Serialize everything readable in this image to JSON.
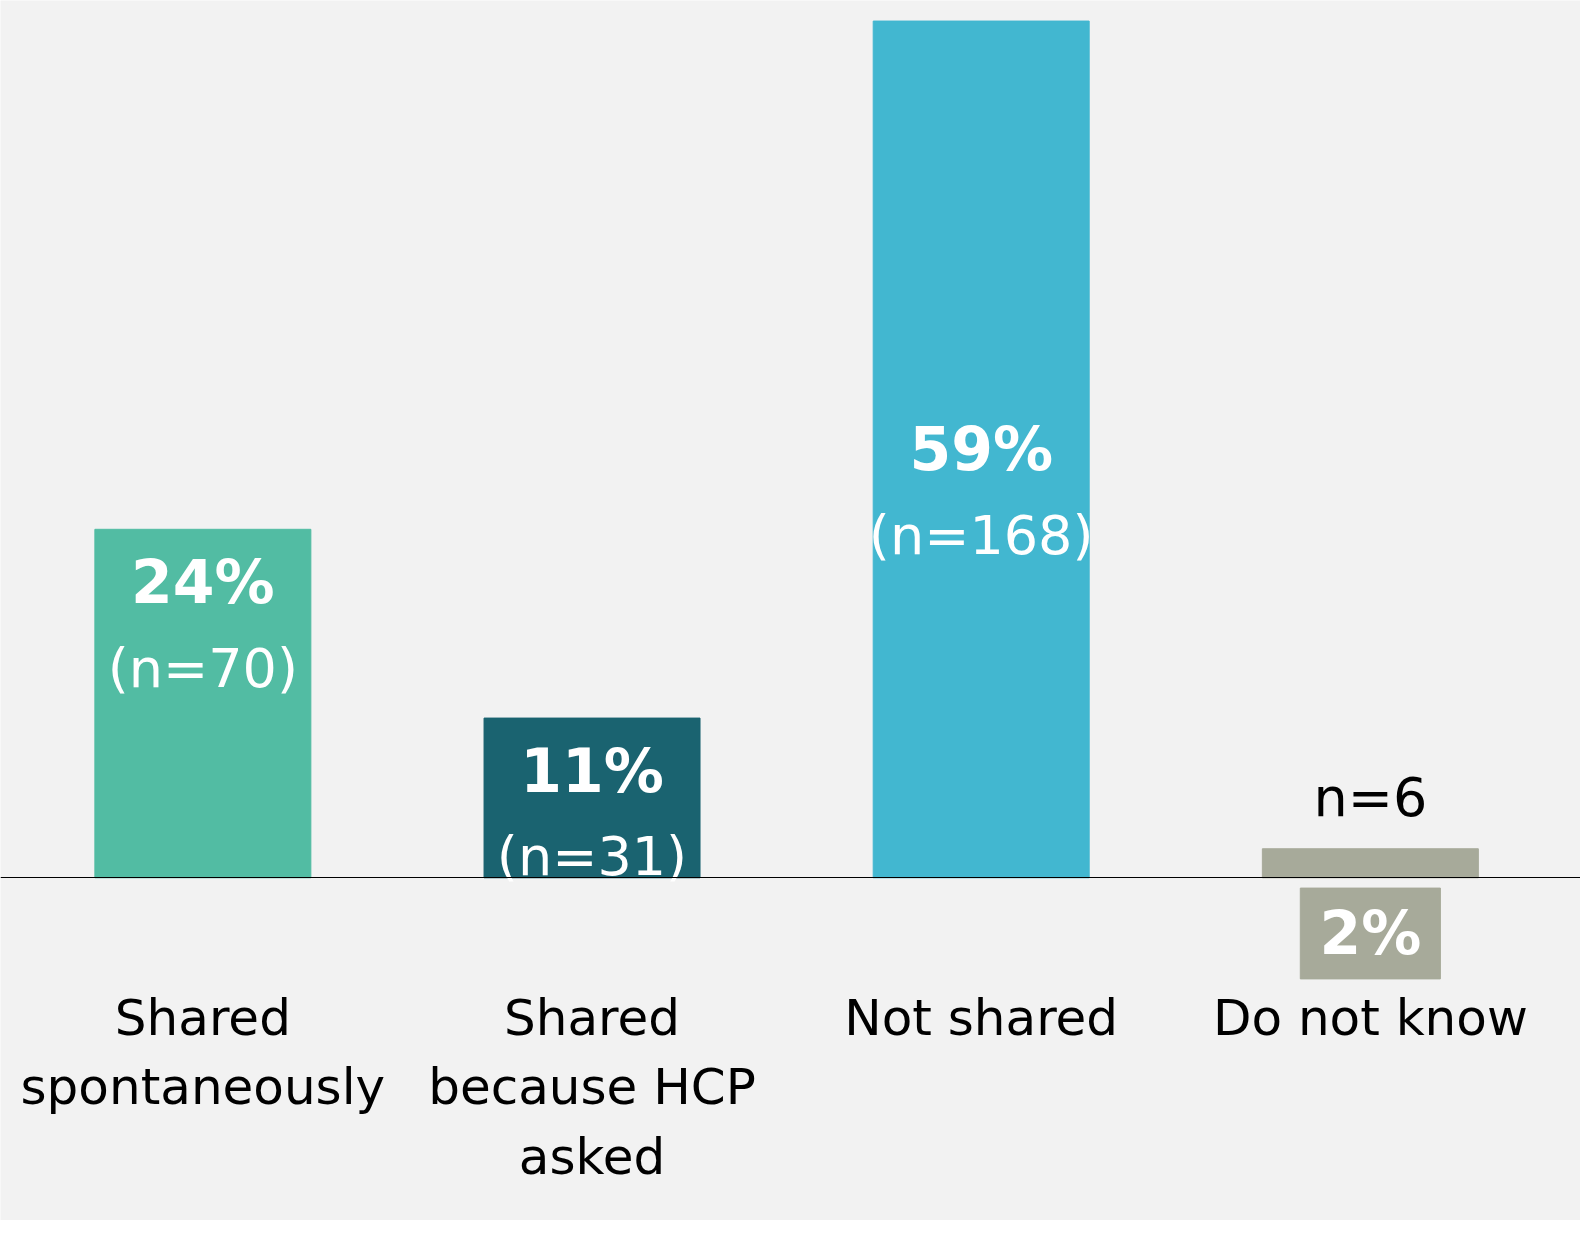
{
  "chart_data": {
    "type": "bar",
    "categories": [
      "Shared spontaneously",
      "Shared because HCP asked",
      "Not shared",
      "Do not know"
    ],
    "values": [
      24,
      11,
      59,
      2
    ],
    "colors": [
      "#52bca3",
      "#1a6370",
      "#42b7d0",
      "#a7aa9a"
    ],
    "value_labels": [
      "24%",
      "11%",
      "59%",
      "2%"
    ],
    "annotations": [
      "(n=70)",
      "(n=31)",
      "(n=168)",
      "n=6"
    ],
    "grid": false
  }
}
